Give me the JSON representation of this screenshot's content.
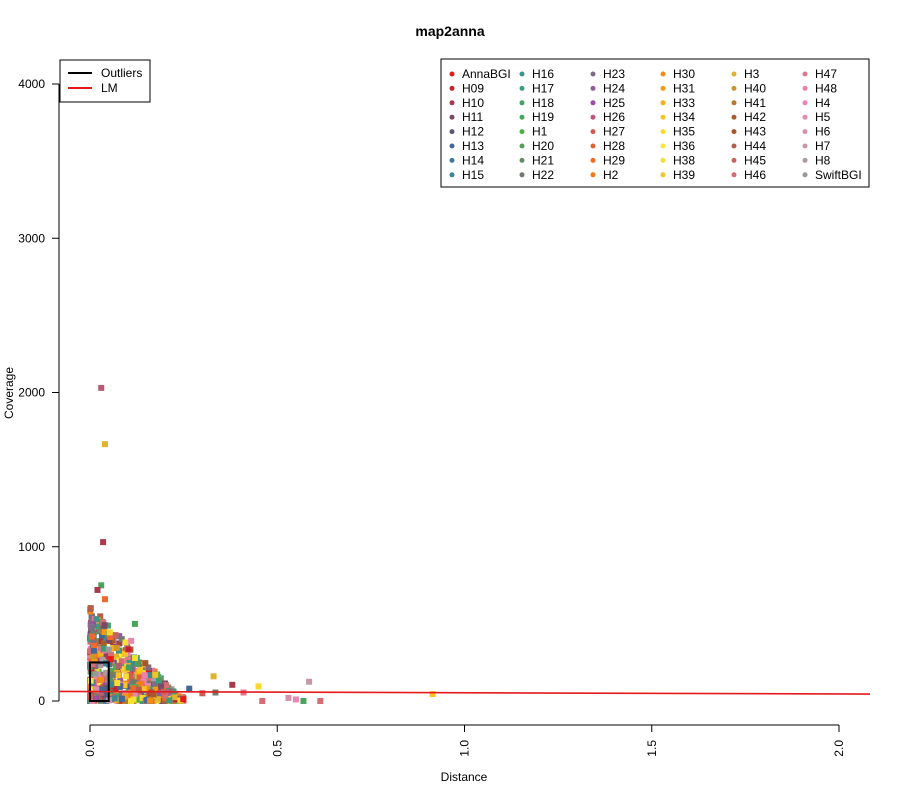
{
  "chart_data": {
    "type": "scatter",
    "title": "map2anna",
    "xlabel": "Distance",
    "ylabel": "Coverage",
    "xlim": [
      0,
      2
    ],
    "ylim": [
      0,
      4000
    ],
    "xticks": [
      "0.0",
      "0.5",
      "1.0",
      "1.5",
      "2.0"
    ],
    "yticks": [
      "0",
      "1000",
      "2000",
      "3000",
      "4000"
    ],
    "grid": false,
    "line_legend": {
      "placement": "top-left",
      "entries": [
        {
          "label": "Outliers",
          "color": "#000000"
        },
        {
          "label": "LM",
          "color": "#e41a1c"
        }
      ]
    },
    "point_legend": {
      "placement": "top-right",
      "columns": 6,
      "entries": [
        {
          "label": "AnnaBGI",
          "color": "#e41a1c"
        },
        {
          "label": "H09",
          "color": "#c8202c"
        },
        {
          "label": "H10",
          "color": "#a83a4c"
        },
        {
          "label": "H11",
          "color": "#7b4a6a"
        },
        {
          "label": "H12",
          "color": "#5a5878"
        },
        {
          "label": "H13",
          "color": "#44679a"
        },
        {
          "label": "H14",
          "color": "#3d7aa0"
        },
        {
          "label": "H15",
          "color": "#3b8795"
        },
        {
          "label": "H16",
          "color": "#3c9486"
        },
        {
          "label": "H17",
          "color": "#3d9c79"
        },
        {
          "label": "H18",
          "color": "#42a06b"
        },
        {
          "label": "H19",
          "color": "#48a55c"
        },
        {
          "label": "H1",
          "color": "#4daf4a"
        },
        {
          "label": "H20",
          "color": "#5a9a58"
        },
        {
          "label": "H21",
          "color": "#668a66"
        },
        {
          "label": "H22",
          "color": "#707a70"
        },
        {
          "label": "H23",
          "color": "#7d6d82"
        },
        {
          "label": "H24",
          "color": "#8e5d98"
        },
        {
          "label": "H25",
          "color": "#984ea3"
        },
        {
          "label": "H26",
          "color": "#b65a76"
        },
        {
          "label": "H27",
          "color": "#cc5d55"
        },
        {
          "label": "H28",
          "color": "#e0603c"
        },
        {
          "label": "H29",
          "color": "#ef6a2a"
        },
        {
          "label": "H2",
          "color": "#f47a1e"
        },
        {
          "label": "H30",
          "color": "#f58a14"
        },
        {
          "label": "H31",
          "color": "#f79a10"
        },
        {
          "label": "H33",
          "color": "#f8ad1a"
        },
        {
          "label": "H34",
          "color": "#f9c324"
        },
        {
          "label": "H35",
          "color": "#fad82e"
        },
        {
          "label": "H36",
          "color": "#fbe637"
        },
        {
          "label": "H38",
          "color": "#f5df30"
        },
        {
          "label": "H39",
          "color": "#ecc828"
        },
        {
          "label": "H3",
          "color": "#e0b32a"
        },
        {
          "label": "H40",
          "color": "#cc962a"
        },
        {
          "label": "H41",
          "color": "#b8792a"
        },
        {
          "label": "H42",
          "color": "#a65e2a"
        },
        {
          "label": "H43",
          "color": "#a65628"
        },
        {
          "label": "H44",
          "color": "#b45e4a"
        },
        {
          "label": "H45",
          "color": "#c6655e"
        },
        {
          "label": "H46",
          "color": "#d76c74"
        },
        {
          "label": "H47",
          "color": "#e5758e"
        },
        {
          "label": "H48",
          "color": "#ee7fa5"
        },
        {
          "label": "H4",
          "color": "#f081b4"
        },
        {
          "label": "H5",
          "color": "#e887b2"
        },
        {
          "label": "H6",
          "color": "#d98eac"
        },
        {
          "label": "H7",
          "color": "#c896a8"
        },
        {
          "label": "H8",
          "color": "#b09aa2"
        },
        {
          "label": "SwiftBGI",
          "color": "#999999"
        }
      ]
    },
    "lm_line": {
      "x": [
        0,
        2.08
      ],
      "y": [
        62,
        45
      ],
      "color": "#e41a1c"
    },
    "outlier_box": {
      "x": [
        0,
        0.05
      ],
      "y": [
        0,
        250
      ],
      "color": "#000000"
    },
    "highlighted_points": [
      {
        "x": 0.03,
        "y": 2030,
        "color": "#b65a76"
      },
      {
        "x": 0.04,
        "y": 1665,
        "color": "#e0b32a"
      },
      {
        "x": 0.035,
        "y": 1030,
        "color": "#a83a4c"
      },
      {
        "x": 0.03,
        "y": 750,
        "color": "#48a55c"
      },
      {
        "x": 0.02,
        "y": 720,
        "color": "#a83a4c"
      },
      {
        "x": 0.04,
        "y": 660,
        "color": "#ef6a2a"
      },
      {
        "x": 0.12,
        "y": 500,
        "color": "#48a55c"
      },
      {
        "x": 0.11,
        "y": 390,
        "color": "#e887b2"
      },
      {
        "x": 0.915,
        "y": 45,
        "color": "#f9c324"
      },
      {
        "x": 0.585,
        "y": 125,
        "color": "#c896a8"
      },
      {
        "x": 0.45,
        "y": 95,
        "color": "#fad82e"
      },
      {
        "x": 0.38,
        "y": 105,
        "color": "#a83a4c"
      },
      {
        "x": 0.41,
        "y": 55,
        "color": "#e5758e"
      },
      {
        "x": 0.33,
        "y": 160,
        "color": "#e0b32a"
      },
      {
        "x": 0.335,
        "y": 55,
        "color": "#707a70"
      },
      {
        "x": 0.265,
        "y": 80,
        "color": "#44679a"
      },
      {
        "x": 0.3,
        "y": 50,
        "color": "#cc5d55"
      },
      {
        "x": 0.53,
        "y": 20,
        "color": "#d98eac"
      },
      {
        "x": 0.57,
        "y": 0,
        "color": "#48a55c"
      },
      {
        "x": 0.615,
        "y": 0,
        "color": "#d76c74"
      },
      {
        "x": 0.46,
        "y": 0,
        "color": "#d76c74"
      },
      {
        "x": 0.55,
        "y": 10,
        "color": "#e887b2"
      }
    ],
    "cluster": {
      "note_points": 700,
      "x_range": [
        0,
        0.25
      ],
      "y_range": [
        0,
        620
      ]
    }
  }
}
